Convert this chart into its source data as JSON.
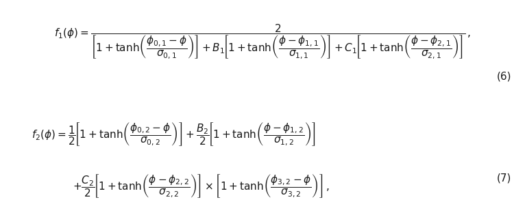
{
  "background_color": "#ffffff",
  "figsize": [
    7.66,
    2.96
  ],
  "dpi": 100,
  "eq1": "f_1(\\phi) = \\dfrac{2}{\\left[1 + \\tanh\\left(\\dfrac{\\phi_{0,1}-\\phi}{\\sigma_{0,1}}\\right)\\right] + B_1\\left[1 + \\tanh\\left(\\dfrac{\\phi-\\phi_{1,1}}{\\sigma_{1,1}}\\right)\\right] + C_1\\left[1 + \\tanh\\left(\\dfrac{\\phi-\\phi_{2,1}}{\\sigma_{2,1}}\\right)\\right]}\\,,",
  "eq2_line1": "f_2(\\phi) = \\dfrac{1}{2}\\left[1 + \\tanh\\left(\\dfrac{\\phi_{0,2} - \\phi}{\\sigma_{0,2}}\\right)\\right] + \\dfrac{B_2}{2}\\left[1 + \\tanh\\left(\\dfrac{\\phi - \\phi_{1,2}}{\\sigma_{1,2}}\\right)\\right]",
  "eq2_line2": "+ \\dfrac{C_2}{2}\\left[1 + \\tanh\\left(\\dfrac{\\phi - \\phi_{2,2}}{\\sigma_{2,2}}\\right)\\right] \\times \\left[1 + \\tanh\\left(\\dfrac{\\phi_{3,2} - \\phi}{\\sigma_{3,2}}\\right)\\right]\\,,",
  "label6": "(6)",
  "label7": "(7)",
  "text_color": "#1a1a1a",
  "fontsize": 11
}
